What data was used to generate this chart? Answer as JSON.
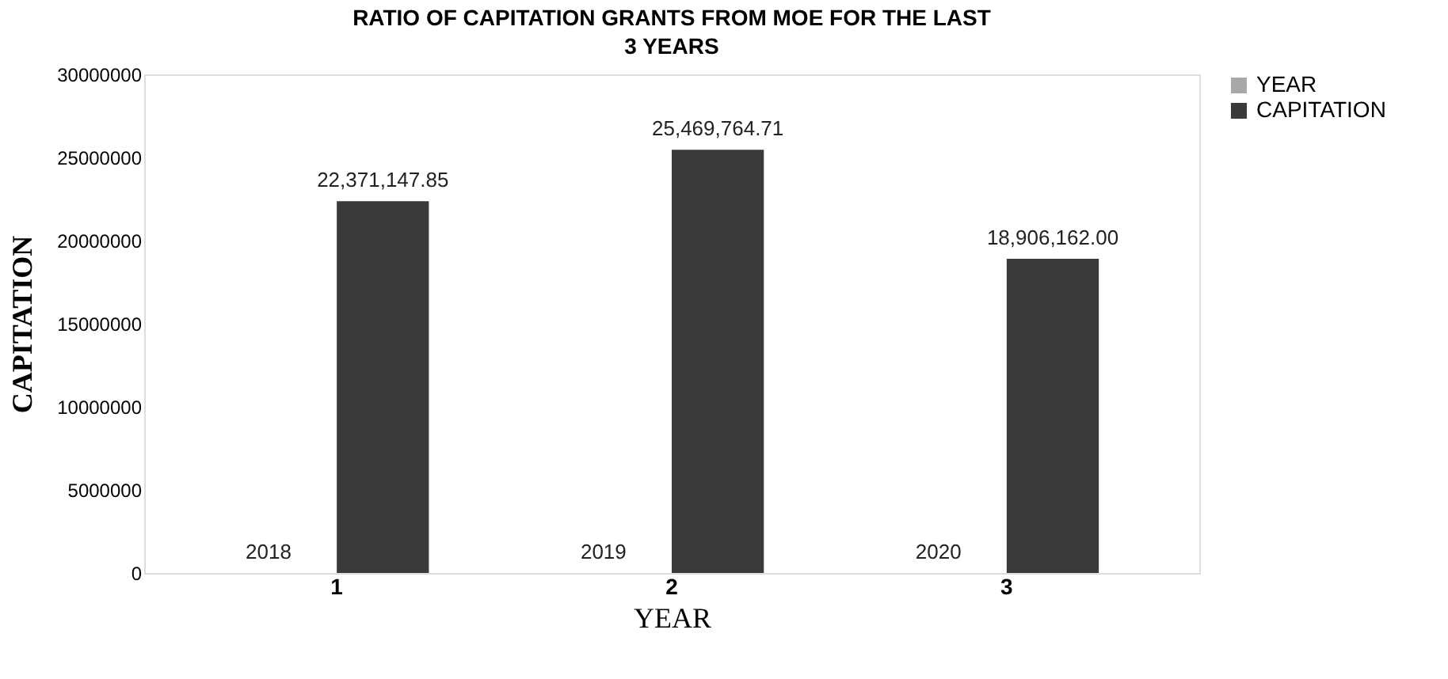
{
  "chart_data": {
    "type": "bar",
    "title": "RATIO OF CAPITATION GRANTS FROM MOE FOR THE LAST 3 YEARS",
    "xlabel": "YEAR",
    "ylabel": "CAPITATION",
    "categories": [
      "1",
      "2",
      "3"
    ],
    "series": [
      {
        "name": "YEAR",
        "color": "#a8a8a8",
        "values": [
          2018,
          2019,
          2020
        ],
        "value_labels": [
          "2018",
          "2019",
          "2020"
        ]
      },
      {
        "name": "CAPITATION",
        "color": "#3a3a3a",
        "values": [
          22371147.85,
          25469764.71,
          18906162.0
        ],
        "value_labels": [
          "22,371,147.85",
          "25,469,764.71",
          "18,906,162.00"
        ]
      }
    ],
    "ylim": [
      0,
      30000000
    ],
    "yticks": [
      0,
      5000000,
      10000000,
      15000000,
      20000000,
      25000000,
      30000000
    ],
    "grid": false,
    "legend": "right"
  }
}
